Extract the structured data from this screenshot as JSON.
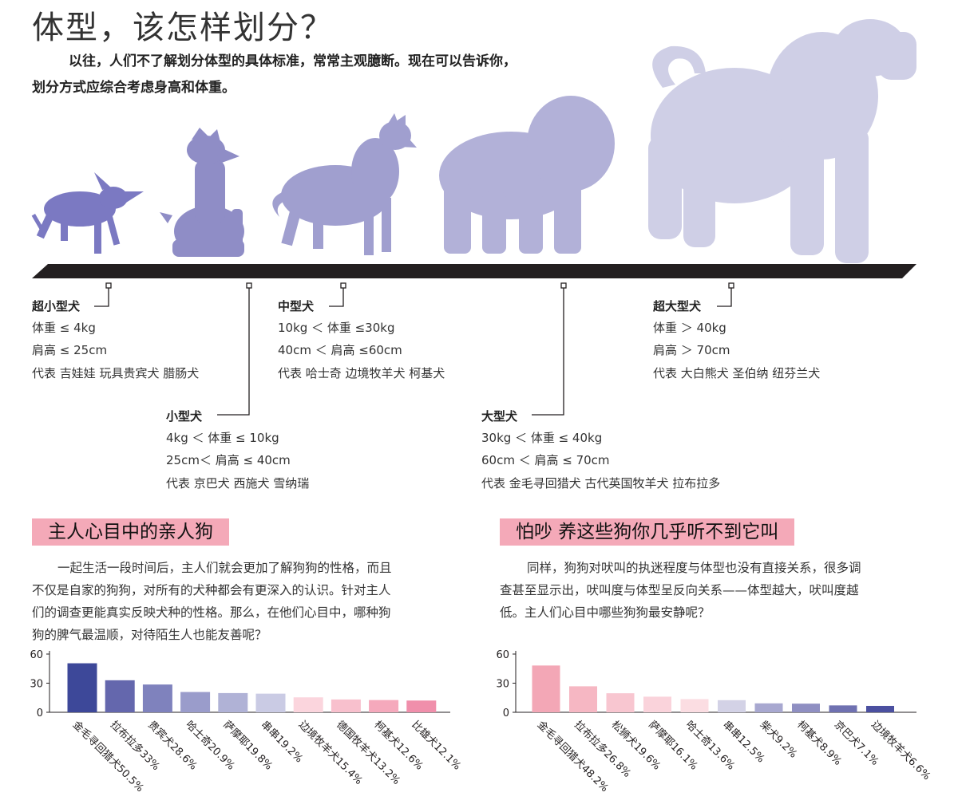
{
  "title": "体型，该怎样划分？",
  "intro": {
    "line1": "以往，人们不了解划分体型的具体标准，常常主观臆断。现在可以告诉你，",
    "line2": "划分方式应综合考虑身高和体重。"
  },
  "icons": [
    "chihuahua-silhouette-icon",
    "schnauzer-silhouette-icon",
    "collie-silhouette-icon",
    "sheepdog-silhouette-icon",
    "mastiff-silhouette-icon"
  ],
  "categories": [
    {
      "name": "超小型犬",
      "weight": "体重 ≤ 4kg",
      "height": "肩高 ≤ 25cm",
      "examples": "代表 吉娃娃 玩具贵宾犬 腊肠犬"
    },
    {
      "name": "小型犬",
      "weight": "4kg ＜ 体重 ≤ 10kg",
      "height": "25cm＜ 肩高 ≤ 40cm",
      "examples": "代表 京巴犬 西施犬 雪纳瑞"
    },
    {
      "name": "中型犬",
      "weight": "10kg ＜ 体重 ≤30kg",
      "height": "40cm ＜ 肩高 ≤60cm",
      "examples": "代表 哈士奇 边境牧羊犬 柯基犬"
    },
    {
      "name": "大型犬",
      "weight": "30kg ＜ 体重 ≤ 40kg",
      "height": "60cm ＜ 肩高 ≤ 70cm",
      "examples": "代表 金毛寻回猎犬 古代英国牧羊犬 拉布拉多"
    },
    {
      "name": "超大型犬",
      "weight": "体重 ＞ 40kg",
      "height": "肩高 ＞ 70cm",
      "examples": "代表 大白熊犬 圣伯纳 纽芬兰犬"
    }
  ],
  "sections": {
    "left": {
      "title": "主人心目中的亲人狗",
      "lines": [
        "一起生活一段时间后，主人们就会更加了解狗狗的性格，而且",
        "不仅是自家的狗狗，对所有的犬种都会有更深入的认识。针对主人",
        "们的调查更能真实反映犬种的性格。那么，在他们心目中，哪种狗",
        "狗的脾气最温顺，对待陌生人也能友善呢？"
      ]
    },
    "right": {
      "title": "怕吵 养这些狗你几乎听不到它叫",
      "lines": [
        "同样，狗狗对吠叫的执迷程度与体型也没有直接关系，很多调",
        "查甚至显示出，吠叫度与体型呈反向关系——体型越大，吠叫度越",
        "低。主人们心目中哪些狗狗最安静呢？"
      ]
    }
  },
  "colors": {
    "section_title_bg": "#f4a9b8",
    "baseline": "#231f20",
    "silhouettes": [
      "#7b79c2",
      "#8f8dc6",
      "#a09fcf",
      "#b2b1d8",
      "#cfcfe6"
    ]
  },
  "chart_data": [
    {
      "type": "bar",
      "ylim": [
        0,
        60
      ],
      "yticks": [
        "60",
        "30",
        "0"
      ],
      "categories": [
        "金毛寻回猎犬50.5%",
        "拉布拉多33%",
        "贵宾犬28.6%",
        "哈士奇20.9%",
        "萨摩耶19.8%",
        "串串19.2%",
        "边境牧羊犬15.4%",
        "德国牧羊犬13.2%",
        "柯基犬12.6%",
        "比雄犬12.1%"
      ],
      "values": [
        50.5,
        33,
        28.6,
        20.9,
        19.8,
        19.2,
        15.4,
        13.2,
        12.6,
        12.1
      ],
      "colors": [
        "#3d4899",
        "#6467ad",
        "#7f82bd",
        "#9a9ccb",
        "#b0b2d6",
        "#cacbe4",
        "#fbd5dd",
        "#f8c0cd",
        "#f5a9bc",
        "#f08fab"
      ]
    },
    {
      "type": "bar",
      "ylim": [
        0,
        60
      ],
      "yticks": [
        "60",
        "30",
        "0"
      ],
      "categories": [
        "金毛寻回猎犬48.2%",
        "拉布拉多26.8%",
        "松狮犬19.6%",
        "萨摩耶16.1%",
        "哈士奇13.6%",
        "串串12.5%",
        "柴犬9.2%",
        "柯基犬8.9%",
        "京巴犬7.1%",
        "边境牧羊犬6.6%"
      ],
      "values": [
        48.2,
        26.8,
        19.6,
        16.1,
        13.6,
        12.5,
        9.2,
        8.9,
        7.1,
        6.6
      ],
      "colors": [
        "#f3a7b6",
        "#f6b7c3",
        "#f8c6d0",
        "#fad3db",
        "#fbdde2",
        "#d3d2e6",
        "#a8a8d0",
        "#8f8fc2",
        "#6f71b1",
        "#4b50a0"
      ]
    }
  ]
}
